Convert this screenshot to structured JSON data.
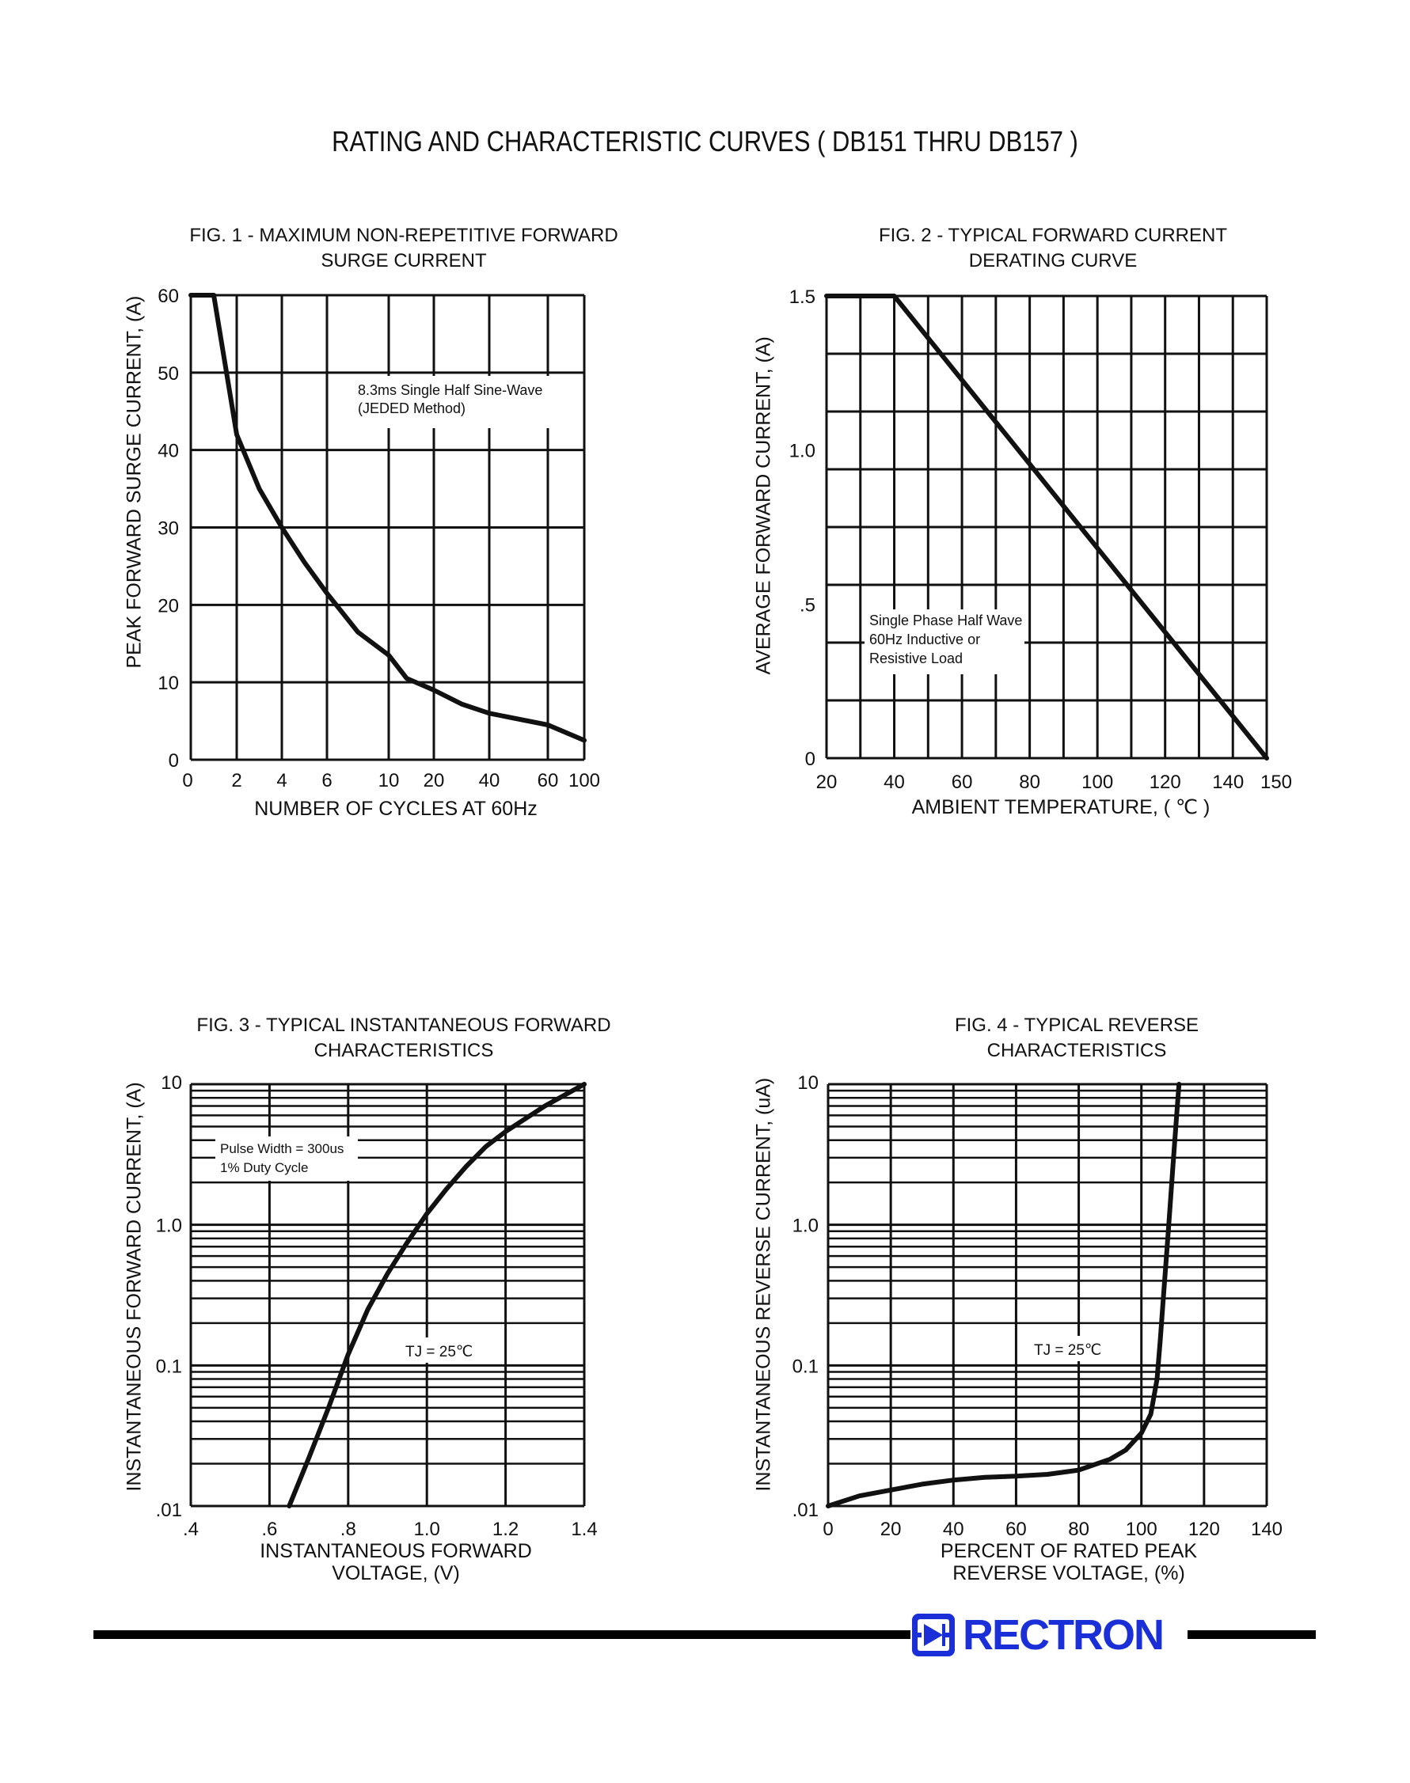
{
  "page": {
    "title": "RATING AND CHARACTERISTIC CURVES ( DB151 THRU DB157 )",
    "brand": "RECTRON"
  },
  "chart_data": [
    {
      "type": "line",
      "title": [
        "FIG. 1 - MAXIMUM NON-REPETITIVE FORWARD",
        "SURGE CURRENT"
      ],
      "xlabel": "NUMBER OF CYCLES AT 60Hz",
      "ylabel": "PEAK FORWARD SURGE CURRENT, (A)",
      "x_ticks": [
        "0",
        "2",
        "4",
        "6",
        "10",
        "20",
        "40",
        "60",
        "100"
      ],
      "y_ticks": [
        "0",
        "10",
        "20",
        "30",
        "40",
        "50",
        "60"
      ],
      "ylim": [
        0,
        60
      ],
      "annotation": [
        "8.3ms Single Half Sine-Wave",
        "(JEDED Method)"
      ],
      "grid": true,
      "series": [
        {
          "x": [
            1,
            2,
            3,
            4,
            5,
            6,
            8,
            10,
            14,
            20,
            30,
            40,
            60,
            100
          ],
          "y": [
            60,
            42,
            35,
            30,
            25.5,
            21.5,
            16.5,
            13.5,
            10.5,
            9,
            7.2,
            6,
            4.5,
            2.5
          ]
        }
      ]
    },
    {
      "type": "line",
      "title": [
        "FIG. 2 - TYPICAL FORWARD CURRENT",
        "DERATING CURVE"
      ],
      "xlabel": "AMBIENT TEMPERATURE, ( ℃ )",
      "ylabel": "AVERAGE FORWARD CURRENT, (A)",
      "x_ticks": [
        "20",
        "40",
        "60",
        "80",
        "100",
        "120",
        "140",
        "150"
      ],
      "y_ticks": [
        "0",
        ".5",
        "1.0",
        "1.5"
      ],
      "xlim": [
        20,
        150
      ],
      "ylim": [
        0,
        1.5
      ],
      "annotation": [
        "Single Phase Half Wave",
        "60Hz Inductive or",
        "Resistive Load"
      ],
      "grid": true,
      "series": [
        {
          "x": [
            20,
            40,
            150
          ],
          "y": [
            1.5,
            1.5,
            0
          ]
        }
      ]
    },
    {
      "type": "line",
      "title": [
        "FIG. 3 - TYPICAL INSTANTANEOUS FORWARD",
        "CHARACTERISTICS"
      ],
      "xlabel": [
        "INSTANTANEOUS FORWARD",
        "VOLTAGE, (V)"
      ],
      "ylabel": "INSTANTANEOUS FORWARD CURRENT, (A)",
      "x_ticks": [
        ".4",
        ".6",
        ".8",
        "1.0",
        "1.2",
        "1.4"
      ],
      "y_ticks": [
        ".01",
        "0.1",
        "1.0",
        "10"
      ],
      "xlim": [
        0.4,
        1.4
      ],
      "ylim": [
        0.01,
        10
      ],
      "y_scale": "log",
      "annotation": [
        "Pulse Width = 300us",
        "1% Duty Cycle"
      ],
      "condition": "TJ = 25℃",
      "grid": true,
      "series": [
        {
          "x": [
            0.65,
            0.7,
            0.75,
            0.8,
            0.85,
            0.9,
            0.95,
            1.0,
            1.05,
            1.1,
            1.15,
            1.2,
            1.3,
            1.4
          ],
          "y": [
            0.01,
            0.022,
            0.05,
            0.12,
            0.25,
            0.45,
            0.75,
            1.2,
            1.8,
            2.6,
            3.6,
            4.6,
            7,
            10
          ]
        }
      ]
    },
    {
      "type": "line",
      "title": [
        "FIG. 4 - TYPICAL REVERSE",
        "CHARACTERISTICS"
      ],
      "xlabel": [
        "PERCENT OF RATED PEAK",
        "REVERSE VOLTAGE, (%)"
      ],
      "ylabel": "INSTANTANEOUS REVERSE CURRENT, (uA)",
      "x_ticks": [
        "0",
        "20",
        "40",
        "60",
        "80",
        "100",
        "120",
        "140"
      ],
      "y_ticks": [
        ".01",
        "0.1",
        "1.0",
        "10"
      ],
      "xlim": [
        0,
        140
      ],
      "ylim": [
        0.01,
        10
      ],
      "y_scale": "log",
      "condition": "TJ = 25℃",
      "grid": true,
      "series": [
        {
          "x": [
            0,
            10,
            20,
            30,
            40,
            50,
            60,
            70,
            80,
            90,
            95,
            100,
            103,
            105,
            106,
            107,
            108,
            109,
            110,
            111,
            112
          ],
          "y": [
            0.01,
            0.0118,
            0.013,
            0.0143,
            0.0153,
            0.016,
            0.0163,
            0.0168,
            0.018,
            0.0215,
            0.025,
            0.033,
            0.045,
            0.08,
            0.15,
            0.3,
            0.6,
            1.2,
            2.5,
            5,
            10
          ]
        }
      ]
    }
  ]
}
